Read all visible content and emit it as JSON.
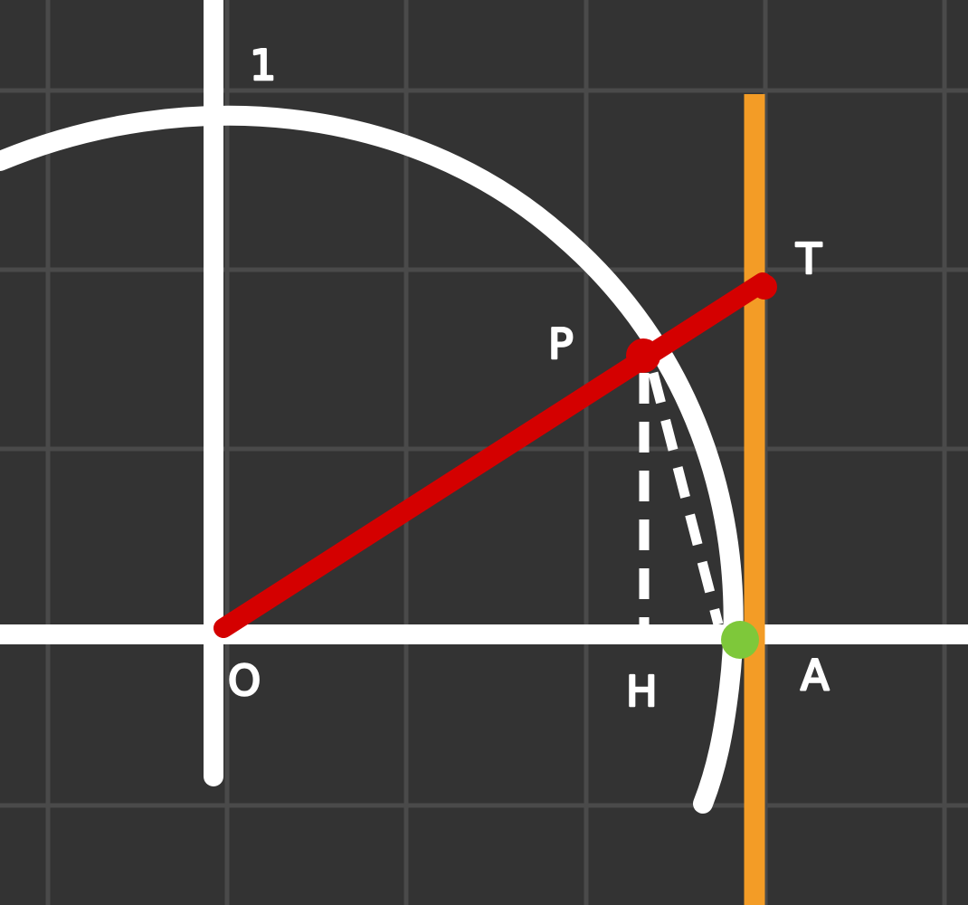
{
  "labels": {
    "one": "1",
    "origin": "O",
    "point_p": "P",
    "point_t": "T",
    "point_h": "H",
    "point_a": "A"
  },
  "colors": {
    "background": "#333333",
    "grid": "#4a4a4a",
    "axes": "#ffffff",
    "arc": "#ffffff",
    "radius_segment": "#d40000",
    "tangent_line": "#f39c26",
    "point_a_marker": "#7ec83a",
    "dashed_lines": "#ffffff"
  }
}
